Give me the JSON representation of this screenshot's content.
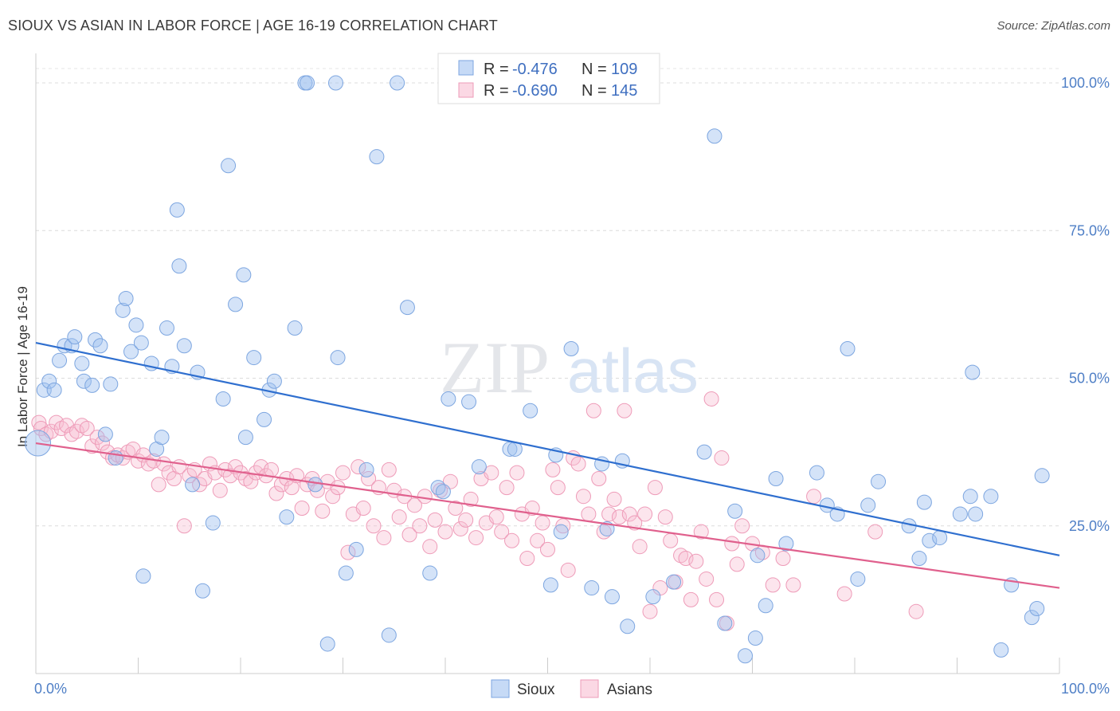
{
  "title": "SIOUX VS ASIAN IN LABOR FORCE | AGE 16-19 CORRELATION CHART",
  "source": "Source: ZipAtlas.com",
  "watermark": {
    "zip": "ZIP",
    "atlas": "atlas"
  },
  "colors": {
    "sioux_fill": "rgba(160,194,240,0.45)",
    "sioux_stroke": "#7da6e0",
    "sioux_line": "#2f6fcf",
    "asians_fill": "rgba(248,190,210,0.40)",
    "asians_stroke": "#ee9bb8",
    "asians_line": "#e0608d",
    "tick_label": "#4f7fc6"
  },
  "legend": {
    "rows": [
      {
        "r_label": "R =",
        "r_value": "-0.476",
        "n_label": "N =",
        "n_value": "109"
      },
      {
        "r_label": "R =",
        "r_value": "-0.690",
        "n_label": "N =",
        "n_value": "145"
      }
    ]
  },
  "bottom_legend": [
    "Sioux",
    "Asians"
  ],
  "chart_data": {
    "type": "scatter",
    "title": "SIOUX VS ASIAN IN LABOR FORCE | AGE 16-19 CORRELATION CHART",
    "xlabel": "",
    "ylabel": "In Labor Force | Age 16-19",
    "xlim": [
      0,
      100
    ],
    "ylim": [
      0,
      105
    ],
    "x_tick_labels": [
      "0.0%",
      "100.0%"
    ],
    "y_ticks": [
      25,
      50,
      75,
      100
    ],
    "y_tick_labels": [
      "25.0%",
      "50.0%",
      "75.0%",
      "100.0%"
    ],
    "grid": true,
    "legend_position": "top-center",
    "series": [
      {
        "name": "Sioux",
        "r": -0.476,
        "n": 109,
        "trend": {
          "x": [
            0,
            100
          ],
          "y": [
            56.0,
            20.0
          ]
        },
        "points": [
          [
            0.2,
            39.0
          ],
          [
            0.8,
            48.0
          ],
          [
            1.3,
            49.5
          ],
          [
            1.8,
            48.0
          ],
          [
            2.3,
            53.0
          ],
          [
            2.8,
            55.5
          ],
          [
            3.5,
            55.5
          ],
          [
            3.8,
            57.0
          ],
          [
            4.5,
            52.5
          ],
          [
            4.7,
            49.5
          ],
          [
            5.5,
            48.8
          ],
          [
            5.8,
            56.5
          ],
          [
            6.3,
            55.5
          ],
          [
            6.8,
            40.5
          ],
          [
            7.3,
            49.0
          ],
          [
            7.8,
            36.5
          ],
          [
            8.5,
            61.5
          ],
          [
            8.8,
            63.5
          ],
          [
            9.3,
            54.5
          ],
          [
            9.8,
            59.0
          ],
          [
            10.3,
            56.0
          ],
          [
            10.5,
            16.5
          ],
          [
            11.3,
            52.5
          ],
          [
            11.8,
            38.0
          ],
          [
            12.3,
            40.0
          ],
          [
            12.8,
            58.5
          ],
          [
            13.3,
            52.0
          ],
          [
            13.8,
            78.5
          ],
          [
            14.0,
            69.0
          ],
          [
            14.5,
            55.5
          ],
          [
            15.3,
            32.0
          ],
          [
            15.8,
            51.0
          ],
          [
            16.3,
            14.0
          ],
          [
            17.3,
            25.5
          ],
          [
            18.3,
            46.5
          ],
          [
            18.8,
            86.0
          ],
          [
            19.5,
            62.5
          ],
          [
            20.3,
            67.5
          ],
          [
            20.5,
            40.0
          ],
          [
            21.3,
            53.5
          ],
          [
            22.3,
            43.0
          ],
          [
            22.8,
            48.0
          ],
          [
            23.3,
            49.5
          ],
          [
            24.5,
            26.5
          ],
          [
            25.3,
            58.5
          ],
          [
            26.3,
            100.0
          ],
          [
            26.5,
            100.0
          ],
          [
            27.3,
            32.0
          ],
          [
            28.5,
            5.0
          ],
          [
            29.3,
            100.0
          ],
          [
            29.5,
            53.5
          ],
          [
            30.3,
            17.0
          ],
          [
            31.3,
            21.0
          ],
          [
            32.3,
            34.5
          ],
          [
            33.3,
            87.5
          ],
          [
            34.5,
            6.5
          ],
          [
            35.3,
            100.0
          ],
          [
            36.3,
            62.0
          ],
          [
            38.5,
            17.0
          ],
          [
            39.3,
            31.5
          ],
          [
            40.3,
            46.5
          ],
          [
            42.3,
            46.0
          ],
          [
            43.3,
            35.0
          ],
          [
            46.3,
            38.0
          ],
          [
            46.8,
            38.0
          ],
          [
            48.3,
            44.5
          ],
          [
            50.3,
            15.0
          ],
          [
            51.3,
            24.0
          ],
          [
            52.3,
            55.0
          ],
          [
            54.3,
            14.5
          ],
          [
            55.3,
            35.5
          ],
          [
            56.3,
            13.0
          ],
          [
            57.3,
            36.0
          ],
          [
            60.3,
            13.0
          ],
          [
            62.3,
            15.5
          ],
          [
            65.3,
            37.5
          ],
          [
            66.3,
            91.0
          ],
          [
            67.3,
            8.5
          ],
          [
            68.3,
            27.5
          ],
          [
            69.3,
            3.0
          ],
          [
            70.3,
            6.0
          ],
          [
            70.5,
            20.0
          ],
          [
            71.3,
            11.5
          ],
          [
            72.3,
            33.0
          ],
          [
            73.3,
            22.0
          ],
          [
            76.3,
            34.0
          ],
          [
            77.3,
            28.5
          ],
          [
            78.3,
            27.0
          ],
          [
            79.3,
            55.0
          ],
          [
            80.3,
            16.0
          ],
          [
            81.3,
            28.5
          ],
          [
            82.3,
            32.5
          ],
          [
            85.3,
            25.0
          ],
          [
            86.3,
            19.5
          ],
          [
            86.8,
            29.0
          ],
          [
            87.3,
            22.5
          ],
          [
            88.3,
            23.0
          ],
          [
            90.3,
            27.0
          ],
          [
            91.3,
            30.0
          ],
          [
            91.5,
            51.0
          ],
          [
            91.8,
            27.0
          ],
          [
            93.3,
            30.0
          ],
          [
            94.3,
            4.0
          ],
          [
            95.3,
            15.0
          ],
          [
            97.3,
            9.5
          ],
          [
            97.8,
            11.0
          ],
          [
            98.3,
            33.5
          ],
          [
            39.8,
            30.8
          ],
          [
            57.8,
            8.0
          ],
          [
            50.8,
            37.0
          ],
          [
            55.8,
            24.5
          ]
        ]
      },
      {
        "name": "Asians",
        "r": -0.69,
        "n": 145,
        "trend": {
          "x": [
            0,
            100
          ],
          "y": [
            39.0,
            14.5
          ]
        },
        "points": [
          [
            0.3,
            42.5
          ],
          [
            0.5,
            41.5
          ],
          [
            1.0,
            40.5
          ],
          [
            1.5,
            41.0
          ],
          [
            2.0,
            42.5
          ],
          [
            2.5,
            41.5
          ],
          [
            3.0,
            42.0
          ],
          [
            3.5,
            40.5
          ],
          [
            4.0,
            41.0
          ],
          [
            4.5,
            42.0
          ],
          [
            5.0,
            41.5
          ],
          [
            5.5,
            38.5
          ],
          [
            6.0,
            40.0
          ],
          [
            6.5,
            39.0
          ],
          [
            7.0,
            37.5
          ],
          [
            7.5,
            36.5
          ],
          [
            8.0,
            37.0
          ],
          [
            8.5,
            36.5
          ],
          [
            9.0,
            37.5
          ],
          [
            9.5,
            38.0
          ],
          [
            10.0,
            36.0
          ],
          [
            10.5,
            37.0
          ],
          [
            11.0,
            35.5
          ],
          [
            11.5,
            36.0
          ],
          [
            12.0,
            32.0
          ],
          [
            12.5,
            35.5
          ],
          [
            13.0,
            34.0
          ],
          [
            13.5,
            33.0
          ],
          [
            14.0,
            35.0
          ],
          [
            14.5,
            25.0
          ],
          [
            15.0,
            33.5
          ],
          [
            15.5,
            34.5
          ],
          [
            16.0,
            32.0
          ],
          [
            16.5,
            33.0
          ],
          [
            17.0,
            35.5
          ],
          [
            17.5,
            34.0
          ],
          [
            18.0,
            31.0
          ],
          [
            18.5,
            34.5
          ],
          [
            19.0,
            33.5
          ],
          [
            19.5,
            35.0
          ],
          [
            20.0,
            34.0
          ],
          [
            20.5,
            33.0
          ],
          [
            21.0,
            32.5
          ],
          [
            21.5,
            34.0
          ],
          [
            22.0,
            35.0
          ],
          [
            22.5,
            33.5
          ],
          [
            23.0,
            34.5
          ],
          [
            23.5,
            30.5
          ],
          [
            24.0,
            32.0
          ],
          [
            24.5,
            33.0
          ],
          [
            25.0,
            31.5
          ],
          [
            25.5,
            33.5
          ],
          [
            26.0,
            28.0
          ],
          [
            26.5,
            32.0
          ],
          [
            27.0,
            33.0
          ],
          [
            27.5,
            31.0
          ],
          [
            28.0,
            27.5
          ],
          [
            28.5,
            32.5
          ],
          [
            29.0,
            30.0
          ],
          [
            29.5,
            31.5
          ],
          [
            30.0,
            34.0
          ],
          [
            30.5,
            20.5
          ],
          [
            31.0,
            27.0
          ],
          [
            31.5,
            35.0
          ],
          [
            32.0,
            28.0
          ],
          [
            32.5,
            33.0
          ],
          [
            33.0,
            25.0
          ],
          [
            33.5,
            31.5
          ],
          [
            34.0,
            23.0
          ],
          [
            34.5,
            34.5
          ],
          [
            35.0,
            31.0
          ],
          [
            35.5,
            26.5
          ],
          [
            36.0,
            30.0
          ],
          [
            36.5,
            23.5
          ],
          [
            37.0,
            28.5
          ],
          [
            37.5,
            25.0
          ],
          [
            38.0,
            30.0
          ],
          [
            38.5,
            21.5
          ],
          [
            39.0,
            26.0
          ],
          [
            39.5,
            31.0
          ],
          [
            40.0,
            24.0
          ],
          [
            40.5,
            32.5
          ],
          [
            41.0,
            28.0
          ],
          [
            41.5,
            24.5
          ],
          [
            42.0,
            26.0
          ],
          [
            42.5,
            29.5
          ],
          [
            43.0,
            23.0
          ],
          [
            43.5,
            33.0
          ],
          [
            44.0,
            25.5
          ],
          [
            44.5,
            34.0
          ],
          [
            45.0,
            26.5
          ],
          [
            45.5,
            24.0
          ],
          [
            46.0,
            31.5
          ],
          [
            46.5,
            22.5
          ],
          [
            47.0,
            34.0
          ],
          [
            47.5,
            27.0
          ],
          [
            48.0,
            19.5
          ],
          [
            48.5,
            28.0
          ],
          [
            49.0,
            22.5
          ],
          [
            49.5,
            25.5
          ],
          [
            50.0,
            21.0
          ],
          [
            50.5,
            34.5
          ],
          [
            51.0,
            31.5
          ],
          [
            51.5,
            25.0
          ],
          [
            52.0,
            17.5
          ],
          [
            52.5,
            36.5
          ],
          [
            53.0,
            35.5
          ],
          [
            53.5,
            30.0
          ],
          [
            54.0,
            27.0
          ],
          [
            54.5,
            44.5
          ],
          [
            55.0,
            33.0
          ],
          [
            55.5,
            24.0
          ],
          [
            56.0,
            27.0
          ],
          [
            56.5,
            29.5
          ],
          [
            57.0,
            26.5
          ],
          [
            57.5,
            44.5
          ],
          [
            58.0,
            27.0
          ],
          [
            58.5,
            25.5
          ],
          [
            59.0,
            21.5
          ],
          [
            59.5,
            27.0
          ],
          [
            60.0,
            10.5
          ],
          [
            60.5,
            31.5
          ],
          [
            61.0,
            14.5
          ],
          [
            61.5,
            26.5
          ],
          [
            62.0,
            22.5
          ],
          [
            62.5,
            15.5
          ],
          [
            63.0,
            20.0
          ],
          [
            63.5,
            19.5
          ],
          [
            64.0,
            12.5
          ],
          [
            64.5,
            19.0
          ],
          [
            65.0,
            24.0
          ],
          [
            65.5,
            16.0
          ],
          [
            66.0,
            46.5
          ],
          [
            66.5,
            12.5
          ],
          [
            67.0,
            36.5
          ],
          [
            67.5,
            8.5
          ],
          [
            68.0,
            22.0
          ],
          [
            68.5,
            18.5
          ],
          [
            69.0,
            25.0
          ],
          [
            70.0,
            22.0
          ],
          [
            71.0,
            20.5
          ],
          [
            72.0,
            15.0
          ],
          [
            73.0,
            19.5
          ],
          [
            74.0,
            15.0
          ],
          [
            76.0,
            30.0
          ],
          [
            79.0,
            13.5
          ],
          [
            82.0,
            24.0
          ],
          [
            86.0,
            10.5
          ]
        ]
      }
    ]
  }
}
